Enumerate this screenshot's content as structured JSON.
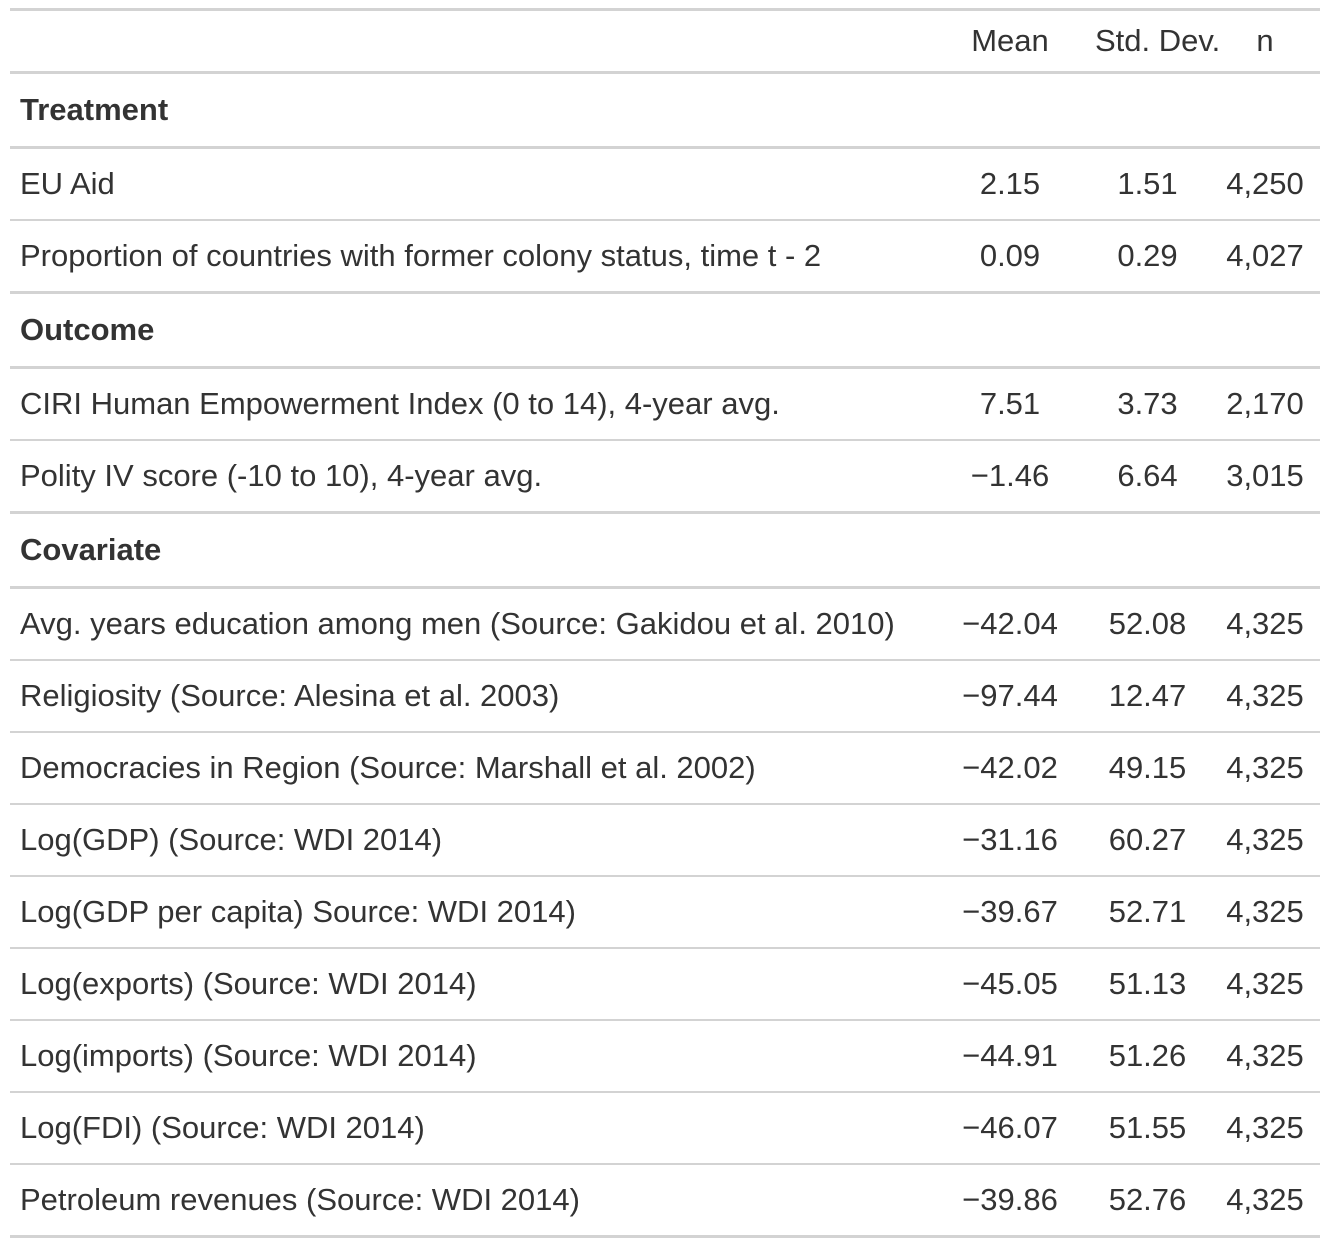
{
  "table": {
    "headers": {
      "label": "",
      "mean": "Mean",
      "sd": "Std. Dev.",
      "n": "n"
    },
    "groups": [
      {
        "name": "Treatment",
        "rows": [
          {
            "label": "EU Aid",
            "mean": "2.15",
            "sd": "1.51",
            "n": "4,250"
          },
          {
            "label": "Proportion of countries with former colony status, time t - 2",
            "mean": "0.09",
            "sd": "0.29",
            "n": "4,027"
          }
        ]
      },
      {
        "name": "Outcome",
        "rows": [
          {
            "label": "CIRI Human Empowerment Index (0 to 14), 4-year avg.",
            "mean": "7.51",
            "sd": "3.73",
            "n": "2,170"
          },
          {
            "label": "Polity IV score (-10 to 10), 4-year avg.",
            "mean": "−1.46",
            "sd": "6.64",
            "n": "3,015"
          }
        ]
      },
      {
        "name": "Covariate",
        "rows": [
          {
            "label": "Avg. years education among men (Source: Gakidou et al. 2010)",
            "mean": "−42.04",
            "sd": "52.08",
            "n": "4,325"
          },
          {
            "label": "Religiosity (Source: Alesina et al. 2003)",
            "mean": "−97.44",
            "sd": "12.47",
            "n": "4,325"
          },
          {
            "label": "Democracies in Region (Source: Marshall et al. 2002)",
            "mean": "−42.02",
            "sd": "49.15",
            "n": "4,325"
          },
          {
            "label": "Log(GDP) (Source: WDI 2014)",
            "mean": "−31.16",
            "sd": "60.27",
            "n": "4,325"
          },
          {
            "label": "Log(GDP per capita) Source: WDI 2014)",
            "mean": "−39.67",
            "sd": "52.71",
            "n": "4,325"
          },
          {
            "label": "Log(exports) (Source: WDI 2014)",
            "mean": "−45.05",
            "sd": "51.13",
            "n": "4,325"
          },
          {
            "label": "Log(imports) (Source: WDI 2014)",
            "mean": "−44.91",
            "sd": "51.26",
            "n": "4,325"
          },
          {
            "label": "Log(FDI) (Source: WDI 2014)",
            "mean": "−46.07",
            "sd": "51.55",
            "n": "4,325"
          },
          {
            "label": "Petroleum revenues (Source: WDI 2014)",
            "mean": "−39.86",
            "sd": "52.76",
            "n": "4,325"
          }
        ]
      }
    ]
  }
}
